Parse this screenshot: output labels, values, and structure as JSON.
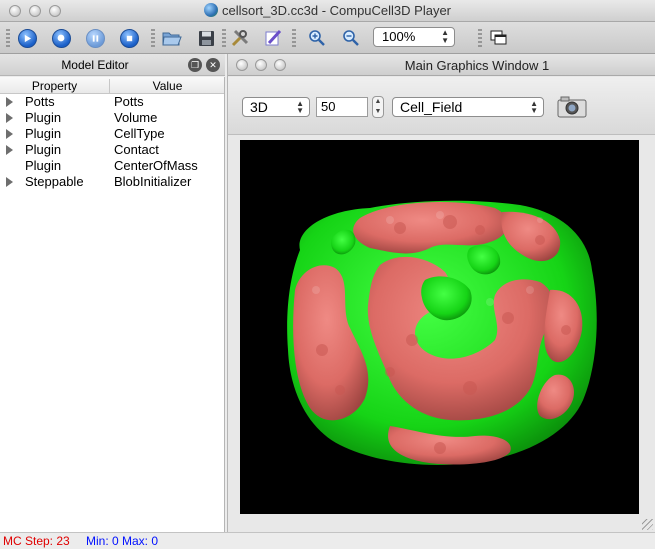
{
  "window": {
    "title": "cellsort_3D.cc3d - CompuCell3D Player"
  },
  "toolbar": {
    "buttons": [
      "run-icon",
      "step-icon",
      "pause-icon",
      "stop-icon",
      "open-folder-icon",
      "save-icon",
      "tools-icon",
      "edit-icon",
      "zoom-in-icon",
      "zoom-out-icon",
      "new-window-icon"
    ],
    "zoom_value": "100%"
  },
  "model_editor": {
    "title": "Model Editor",
    "columns": {
      "property": "Property",
      "value": "Value"
    },
    "rows": [
      {
        "property": "Potts",
        "value": "Potts",
        "expandable": true
      },
      {
        "property": "Plugin",
        "value": "Volume",
        "expandable": true
      },
      {
        "property": "Plugin",
        "value": "CellType",
        "expandable": true
      },
      {
        "property": "Plugin",
        "value": "Contact",
        "expandable": true
      },
      {
        "property": "Plugin",
        "value": "CenterOfMass",
        "expandable": false
      },
      {
        "property": "Steppable",
        "value": "BlobInitializer",
        "expandable": true
      }
    ]
  },
  "graphics_window": {
    "title": "Main Graphics Window 1",
    "view_mode": "3D",
    "slice_value": "50",
    "field": "Cell_Field",
    "colors": {
      "cell_type_1": "#e0706a",
      "cell_type_2": "#1ee01e",
      "background": "#000000"
    }
  },
  "status": {
    "step_text": "MC Step: 23",
    "minmax_text": "Min: 0 Max: 0"
  }
}
